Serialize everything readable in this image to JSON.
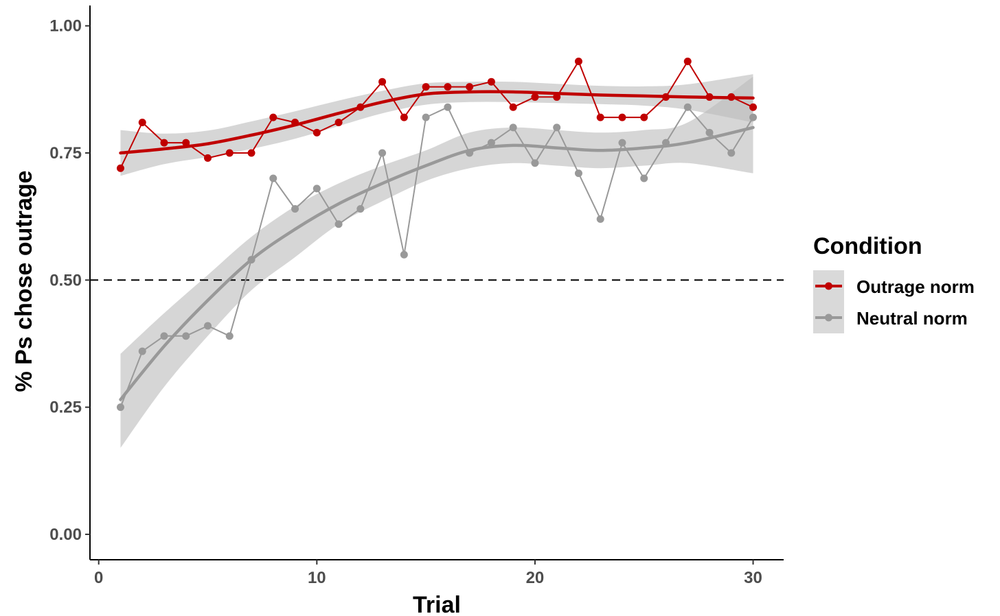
{
  "chart_data": {
    "type": "line",
    "title": "",
    "xlabel": "Trial",
    "ylabel": "% Ps chose outrage",
    "xlim": [
      -0.4,
      31.4
    ],
    "ylim": [
      -0.05,
      1.04
    ],
    "x_ticks": [
      0,
      10,
      20,
      30
    ],
    "x_tick_labels": [
      "0",
      "10",
      "20",
      "30"
    ],
    "y_ticks": [
      0,
      0.25,
      0.5,
      0.75,
      1.0
    ],
    "y_tick_labels": [
      "0.00",
      "0.25",
      "0.50",
      "0.75",
      "1.00"
    ],
    "reference_line": {
      "y": 0.5,
      "style": "dashed",
      "color": "#000000"
    },
    "grid": false,
    "legend": {
      "title": "Condition",
      "position": "right"
    },
    "series": [
      {
        "name": "Outrage norm",
        "color": "#c00000",
        "x": [
          1,
          2,
          3,
          4,
          5,
          6,
          7,
          8,
          9,
          10,
          11,
          12,
          13,
          14,
          15,
          16,
          17,
          18,
          19,
          20,
          21,
          22,
          23,
          24,
          25,
          26,
          27,
          28,
          29,
          30
        ],
        "values": [
          0.72,
          0.81,
          0.77,
          0.77,
          0.74,
          0.75,
          0.75,
          0.82,
          0.81,
          0.79,
          0.81,
          0.84,
          0.89,
          0.82,
          0.88,
          0.88,
          0.88,
          0.89,
          0.84,
          0.86,
          0.86,
          0.93,
          0.82,
          0.82,
          0.82,
          0.86,
          0.93,
          0.86,
          0.86,
          0.84
        ],
        "smooth": {
          "x": [
            1,
            3,
            5,
            7,
            9,
            11,
            13,
            15,
            17,
            19,
            21,
            23,
            25,
            27,
            30
          ],
          "fit": [
            0.75,
            0.758,
            0.768,
            0.785,
            0.805,
            0.828,
            0.85,
            0.866,
            0.87,
            0.87,
            0.867,
            0.864,
            0.862,
            0.86,
            0.858
          ],
          "lower": [
            0.705,
            0.728,
            0.742,
            0.758,
            0.778,
            0.803,
            0.828,
            0.845,
            0.85,
            0.85,
            0.848,
            0.846,
            0.843,
            0.835,
            0.81
          ],
          "upper": [
            0.795,
            0.788,
            0.794,
            0.812,
            0.832,
            0.853,
            0.872,
            0.887,
            0.89,
            0.89,
            0.886,
            0.882,
            0.881,
            0.885,
            0.905
          ]
        }
      },
      {
        "name": "Neutral norm",
        "color": "#999999",
        "x": [
          1,
          2,
          3,
          4,
          5,
          6,
          7,
          8,
          9,
          10,
          11,
          12,
          13,
          14,
          15,
          16,
          17,
          18,
          19,
          20,
          21,
          22,
          23,
          24,
          25,
          26,
          27,
          28,
          29,
          30
        ],
        "values": [
          0.25,
          0.36,
          0.39,
          0.39,
          0.41,
          0.39,
          0.54,
          0.7,
          0.64,
          0.68,
          0.61,
          0.64,
          0.75,
          0.55,
          0.82,
          0.84,
          0.75,
          0.77,
          0.8,
          0.73,
          0.8,
          0.71,
          0.62,
          0.77,
          0.7,
          0.77,
          0.84,
          0.79,
          0.75,
          0.82
        ],
        "smooth": {
          "x": [
            1,
            3,
            5,
            7,
            9,
            11,
            13,
            15,
            17,
            19,
            21,
            23,
            25,
            27,
            30
          ],
          "fit": [
            0.265,
            0.37,
            0.46,
            0.54,
            0.6,
            0.65,
            0.69,
            0.725,
            0.755,
            0.765,
            0.76,
            0.755,
            0.76,
            0.77,
            0.8
          ],
          "lower": [
            0.17,
            0.29,
            0.39,
            0.48,
            0.545,
            0.61,
            0.655,
            0.695,
            0.72,
            0.73,
            0.725,
            0.72,
            0.725,
            0.73,
            0.71
          ],
          "upper": [
            0.355,
            0.435,
            0.51,
            0.585,
            0.645,
            0.69,
            0.725,
            0.755,
            0.79,
            0.8,
            0.795,
            0.79,
            0.795,
            0.81,
            0.9
          ]
        }
      }
    ]
  }
}
